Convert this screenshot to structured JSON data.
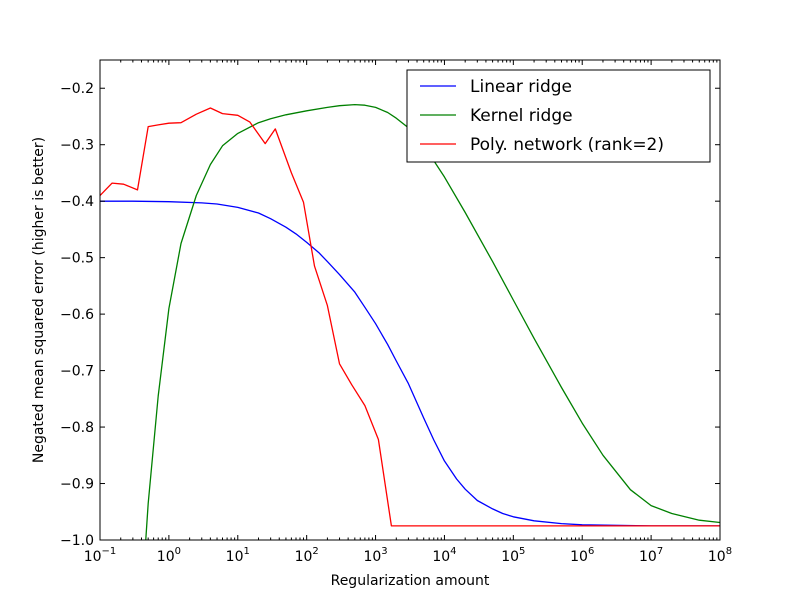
{
  "chart_data": {
    "type": "line",
    "xlabel": "Regularization amount",
    "ylabel": "Negated mean squared error (higher is better)",
    "xscale": "log",
    "xlim": [
      0.1,
      100000000
    ],
    "ylim": [
      -1.0,
      -0.15
    ],
    "legend_position": "top-right",
    "grid": false,
    "x_ticks": [
      {
        "value": 0.1,
        "base": "10",
        "exp": "−1"
      },
      {
        "value": 1,
        "base": "10",
        "exp": "0"
      },
      {
        "value": 10,
        "base": "10",
        "exp": "1"
      },
      {
        "value": 100,
        "base": "10",
        "exp": "2"
      },
      {
        "value": 1000,
        "base": "10",
        "exp": "3"
      },
      {
        "value": 10000,
        "base": "10",
        "exp": "4"
      },
      {
        "value": 100000,
        "base": "10",
        "exp": "5"
      },
      {
        "value": 1000000,
        "base": "10",
        "exp": "6"
      },
      {
        "value": 10000000,
        "base": "10",
        "exp": "7"
      },
      {
        "value": 100000000,
        "base": "10",
        "exp": "8"
      }
    ],
    "y_ticks": [
      {
        "value": -0.2,
        "label": "−0.2"
      },
      {
        "value": -0.3,
        "label": "−0.3"
      },
      {
        "value": -0.4,
        "label": "−0.4"
      },
      {
        "value": -0.5,
        "label": "−0.5"
      },
      {
        "value": -0.6,
        "label": "−0.6"
      },
      {
        "value": -0.7,
        "label": "−0.7"
      },
      {
        "value": -0.8,
        "label": "−0.8"
      },
      {
        "value": -0.9,
        "label": "−0.9"
      },
      {
        "value": -1.0,
        "label": "−1.0"
      }
    ],
    "series": [
      {
        "name": "Linear ridge",
        "color": "#0000ff",
        "points": [
          [
            0.1,
            -0.4
          ],
          [
            0.3,
            -0.4
          ],
          [
            1,
            -0.401
          ],
          [
            3,
            -0.403
          ],
          [
            5,
            -0.405
          ],
          [
            10,
            -0.411
          ],
          [
            20,
            -0.421
          ],
          [
            30,
            -0.431
          ],
          [
            50,
            -0.446
          ],
          [
            70,
            -0.458
          ],
          [
            100,
            -0.473
          ],
          [
            150,
            -0.491
          ],
          [
            200,
            -0.507
          ],
          [
            300,
            -0.53
          ],
          [
            500,
            -0.561
          ],
          [
            700,
            -0.588
          ],
          [
            1000,
            -0.617
          ],
          [
            1500,
            -0.654
          ],
          [
            2000,
            -0.683
          ],
          [
            3000,
            -0.723
          ],
          [
            5000,
            -0.784
          ],
          [
            7000,
            -0.823
          ],
          [
            10000,
            -0.86
          ],
          [
            15000,
            -0.892
          ],
          [
            20000,
            -0.91
          ],
          [
            30000,
            -0.93
          ],
          [
            50000,
            -0.945
          ],
          [
            70000,
            -0.953
          ],
          [
            100000,
            -0.959
          ],
          [
            200000,
            -0.966
          ],
          [
            500000,
            -0.971
          ],
          [
            1000000,
            -0.973
          ],
          [
            10000000,
            -0.975
          ],
          [
            100000000,
            -0.975
          ]
        ]
      },
      {
        "name": "Kernel ridge",
        "color": "#008000",
        "points": [
          [
            0.45,
            -1.02
          ],
          [
            0.5,
            -0.935
          ],
          [
            0.7,
            -0.745
          ],
          [
            1,
            -0.59
          ],
          [
            1.5,
            -0.475
          ],
          [
            2.5,
            -0.39
          ],
          [
            4,
            -0.335
          ],
          [
            6,
            -0.302
          ],
          [
            10,
            -0.28
          ],
          [
            20,
            -0.261
          ],
          [
            30,
            -0.254
          ],
          [
            50,
            -0.247
          ],
          [
            100,
            -0.24
          ],
          [
            200,
            -0.234
          ],
          [
            300,
            -0.231
          ],
          [
            500,
            -0.229
          ],
          [
            700,
            -0.23
          ],
          [
            1000,
            -0.234
          ],
          [
            1500,
            -0.243
          ],
          [
            2000,
            -0.253
          ],
          [
            3000,
            -0.27
          ],
          [
            5000,
            -0.301
          ],
          [
            10000,
            -0.357
          ],
          [
            20000,
            -0.42
          ],
          [
            50000,
            -0.507
          ],
          [
            100000,
            -0.575
          ],
          [
            200000,
            -0.643
          ],
          [
            500000,
            -0.73
          ],
          [
            1000000,
            -0.793
          ],
          [
            2000000,
            -0.85
          ],
          [
            5000000,
            -0.911
          ],
          [
            10000000,
            -0.939
          ],
          [
            20000000,
            -0.953
          ],
          [
            50000000,
            -0.965
          ],
          [
            100000000,
            -0.969
          ]
        ]
      },
      {
        "name": "Poly. network (rank=2)",
        "color": "#ff0000",
        "points": [
          [
            0.1,
            -0.39
          ],
          [
            0.15,
            -0.368
          ],
          [
            0.22,
            -0.37
          ],
          [
            0.35,
            -0.38
          ],
          [
            0.5,
            -0.268
          ],
          [
            0.7,
            -0.265
          ],
          [
            1,
            -0.262
          ],
          [
            1.5,
            -0.261
          ],
          [
            2.5,
            -0.246
          ],
          [
            4,
            -0.235
          ],
          [
            6,
            -0.245
          ],
          [
            10,
            -0.248
          ],
          [
            15,
            -0.26
          ],
          [
            25,
            -0.298
          ],
          [
            35,
            -0.272
          ],
          [
            60,
            -0.35
          ],
          [
            90,
            -0.402
          ],
          [
            130,
            -0.515
          ],
          [
            200,
            -0.585
          ],
          [
            300,
            -0.688
          ],
          [
            450,
            -0.725
          ],
          [
            700,
            -0.762
          ],
          [
            1100,
            -0.822
          ],
          [
            1700,
            -0.975
          ],
          [
            3000,
            -0.975
          ],
          [
            10000,
            -0.975
          ],
          [
            100000,
            -0.975
          ],
          [
            1000000,
            -0.975
          ],
          [
            10000000,
            -0.975
          ],
          [
            100000000,
            -0.975
          ]
        ]
      }
    ]
  }
}
